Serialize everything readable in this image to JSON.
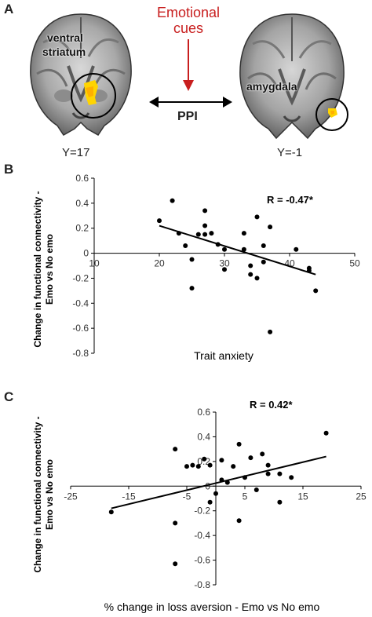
{
  "panel_a": {
    "letter": "A",
    "left_brain_label_line1": "ventral",
    "left_brain_label_line2": "striatum",
    "right_brain_label": "amygdala",
    "cue_line1": "Emotional",
    "cue_line2": "cues",
    "ppi": "PPI",
    "left_slice": "Y=17",
    "right_slice": "Y=-1",
    "cue_color": "#c81e1e",
    "activation_color": "#ffd400"
  },
  "panel_b": {
    "letter": "B",
    "ylabel_line1": "Change in functional connectivity -",
    "ylabel_line2": "Emo vs No emo",
    "xlabel": "Trait anxiety",
    "annotation": "R = -0.47*"
  },
  "panel_c": {
    "letter": "C",
    "ylabel_line1": "Change in functional connectivity -",
    "ylabel_line2": "Emo vs No emo",
    "xlabel": "%  change in loss aversion - Emo vs No emo",
    "annotation": "R = 0.42*"
  },
  "chart_data": [
    {
      "type": "scatter",
      "xlabel": "Trait anxiety",
      "ylabel": "Change in functional connectivity - Emo vs No emo",
      "xlim": [
        10,
        50
      ],
      "ylim": [
        -0.8,
        0.6
      ],
      "xticks": [
        "10",
        "20",
        "30",
        "40",
        "50"
      ],
      "yticks": [
        "0.6",
        "0.4",
        "0.2",
        "0",
        "-0.2",
        "-0.4",
        "-0.6",
        "-0.8"
      ],
      "points": [
        [
          20,
          0.26
        ],
        [
          22,
          0.42
        ],
        [
          23,
          0.16
        ],
        [
          24,
          0.06
        ],
        [
          25,
          -0.05
        ],
        [
          25,
          -0.28
        ],
        [
          26,
          0.15
        ],
        [
          27,
          0.34
        ],
        [
          27,
          0.22
        ],
        [
          27,
          0.15
        ],
        [
          28,
          0.16
        ],
        [
          29,
          0.07
        ],
        [
          30,
          0.03
        ],
        [
          30,
          -0.13
        ],
        [
          33,
          0.16
        ],
        [
          33,
          0.03
        ],
        [
          34,
          -0.1
        ],
        [
          34,
          -0.17
        ],
        [
          35,
          0.29
        ],
        [
          35,
          -0.2
        ],
        [
          36,
          0.06
        ],
        [
          36,
          -0.07
        ],
        [
          37,
          0.21
        ],
        [
          37,
          -0.63
        ],
        [
          41,
          0.03
        ],
        [
          43,
          -0.12
        ],
        [
          43,
          -0.14
        ],
        [
          44,
          -0.3
        ]
      ],
      "fit_line": [
        [
          20,
          0.22
        ],
        [
          44,
          -0.17
        ]
      ],
      "annotation": "R = -0.47*",
      "grid": false
    },
    {
      "type": "scatter",
      "xlabel": "%  change in loss aversion - Emo vs No emo",
      "ylabel": "Change in functional connectivity - Emo vs No emo",
      "xlim": [
        -25,
        25
      ],
      "ylim": [
        -0.8,
        0.6
      ],
      "xticks": [
        "-25",
        "-15",
        "-5",
        "5",
        "15",
        "25"
      ],
      "yticks": [
        "0.6",
        "0.4",
        "0.2",
        "0",
        "-0.2",
        "-0.4",
        "-0.6",
        "-0.8"
      ],
      "points": [
        [
          -18,
          -0.21
        ],
        [
          -7,
          0.3
        ],
        [
          -7,
          -0.3
        ],
        [
          -7,
          -0.63
        ],
        [
          -5,
          0.16
        ],
        [
          -4,
          0.17
        ],
        [
          -3,
          0.16
        ],
        [
          -2,
          0.22
        ],
        [
          -1,
          0.17
        ],
        [
          -1,
          -0.13
        ],
        [
          0,
          -0.06
        ],
        [
          1,
          0.21
        ],
        [
          1,
          0.05
        ],
        [
          2,
          0.03
        ],
        [
          3,
          0.16
        ],
        [
          4,
          0.34
        ],
        [
          4,
          -0.28
        ],
        [
          5,
          0.07
        ],
        [
          6,
          0.23
        ],
        [
          7,
          -0.03
        ],
        [
          8,
          0.26
        ],
        [
          9,
          0.1
        ],
        [
          9,
          0.17
        ],
        [
          11,
          -0.13
        ],
        [
          11,
          0.1
        ],
        [
          13,
          0.07
        ],
        [
          19,
          0.43
        ]
      ],
      "fit_line": [
        [
          -18,
          -0.18
        ],
        [
          19,
          0.24
        ]
      ],
      "annotation": "R = 0.42*",
      "grid": false
    }
  ]
}
